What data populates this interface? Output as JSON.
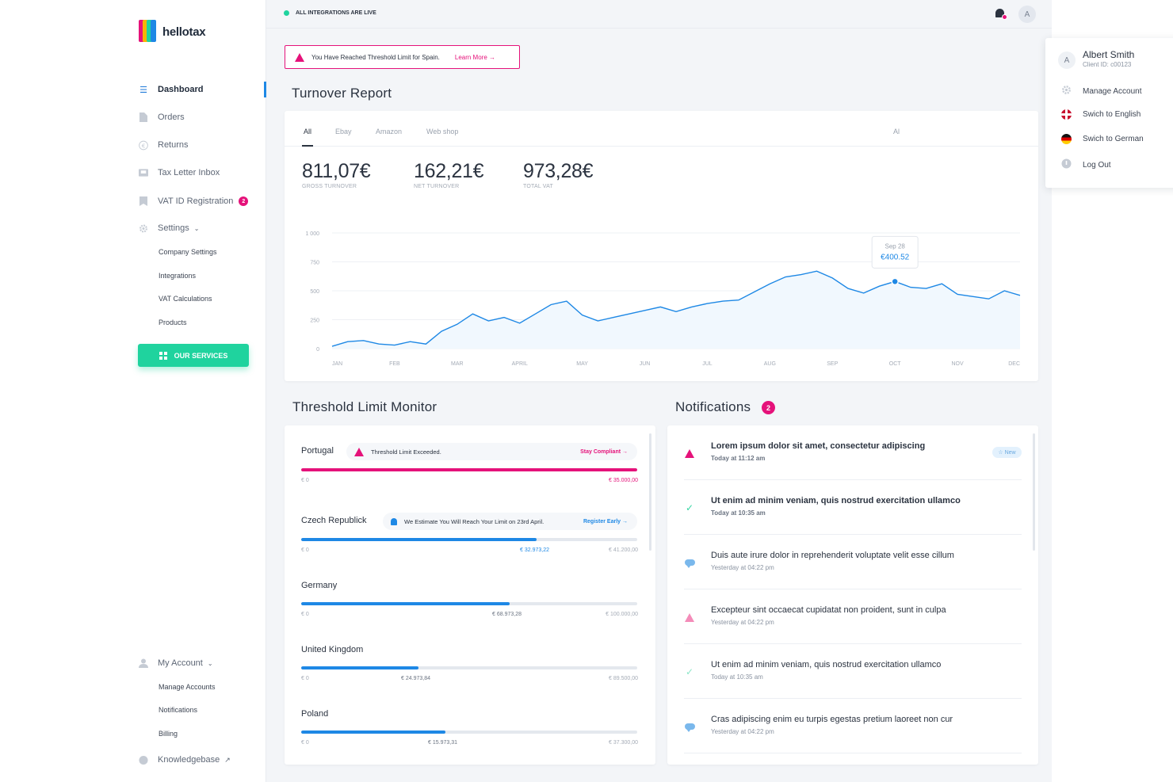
{
  "brand": {
    "name": "hellotax",
    "logo_colors": [
      "#e5127a",
      "#f7b500",
      "#1fd39e",
      "#1e88e5"
    ]
  },
  "sidebar": {
    "items": [
      {
        "label": "Dashboard",
        "icon": "menu-icon"
      },
      {
        "label": "Orders",
        "icon": "document-icon"
      },
      {
        "label": "Returns",
        "icon": "euro-icon"
      },
      {
        "label": "Tax Letter Inbox",
        "icon": "inbox-icon"
      },
      {
        "label": "VAT ID Registration",
        "icon": "bookmark-icon",
        "badge": "2"
      },
      {
        "label": "Settings",
        "icon": "gear-icon"
      }
    ],
    "settings_sub": [
      "Company Settings",
      "Integrations",
      "VAT Calculations",
      "Products"
    ],
    "services_button": "OUR SERVICES",
    "account": {
      "label": "My Account",
      "icon": "user-icon"
    },
    "account_sub": [
      "Manage Accounts",
      "Notifications",
      "Billing"
    ],
    "knowledgebase": "Knowledgebase"
  },
  "topbar": {
    "status": "ALL INTEGRATIONS ARE LIVE",
    "avatar_initial": "A"
  },
  "alert": {
    "text": "You Have Reached Threshold Limit for Spain.",
    "link": "Learn More →"
  },
  "turnover": {
    "title": "Turnover Report",
    "tabs": [
      "All",
      "Ebay",
      "Amazon",
      "Web shop"
    ],
    "tab_right": "Al",
    "stats": [
      {
        "value": "811,07€",
        "label": "GROSS TURNOVER"
      },
      {
        "value": "162,21€",
        "label": "NET TURNOVER"
      },
      {
        "value": "973,28€",
        "label": "TOTAL VAT"
      }
    ],
    "tooltip": {
      "date": "Sep 28",
      "value": "€400.52"
    }
  },
  "chart_data": {
    "type": "area",
    "title": "",
    "xlabel": "",
    "ylabel": "",
    "ylim": [
      0,
      1000
    ],
    "yticks": [
      "0",
      "250",
      "500",
      "750",
      "1 000"
    ],
    "categories": [
      "JAN",
      "FEB",
      "MAR",
      "APRIL",
      "MAY",
      "JUN",
      "JUL",
      "AUG",
      "SEP",
      "OCT",
      "NOV",
      "DEC"
    ],
    "x": [
      0,
      0.25,
      0.5,
      0.75,
      1,
      1.25,
      1.5,
      1.75,
      2,
      2.25,
      2.5,
      2.75,
      3,
      3.25,
      3.5,
      3.75,
      4,
      4.25,
      4.5,
      4.75,
      5,
      5.25,
      5.5,
      5.75,
      6,
      6.25,
      6.5,
      6.75,
      7,
      7.25,
      7.5,
      7.75,
      8,
      8.25,
      8.5,
      8.75,
      9,
      9.25,
      9.5,
      9.75,
      10,
      10.25,
      10.5,
      10.75,
      11
    ],
    "values": [
      20,
      60,
      70,
      40,
      30,
      60,
      40,
      150,
      210,
      300,
      240,
      270,
      220,
      300,
      380,
      410,
      290,
      240,
      270,
      300,
      330,
      360,
      320,
      360,
      390,
      410,
      420,
      490,
      560,
      620,
      640,
      670,
      610,
      520,
      480,
      540,
      580,
      530,
      520,
      560,
      470,
      450,
      430,
      500,
      460
    ],
    "series_color": "#1e88e5",
    "fill_color": "#f1f8fe",
    "grid": true
  },
  "threshold": {
    "title": "Threshold Limit Monitor",
    "rows": [
      {
        "country": "Portugal",
        "pill": "Threshold Limit Exceeded.",
        "action": "Stay Compliant →",
        "progress": 1.0,
        "min": "€ 0",
        "current": "",
        "max": "€ 35.000,00",
        "color": "#e5127a",
        "pill_type": "warning"
      },
      {
        "country": "Czech Republick",
        "pill": "We Estimate You Will Reach Your Limit on 23rd April.",
        "action": "Register Early →",
        "progress": 0.7,
        "min": "€ 0",
        "current": "€ 32.973,22",
        "max": "€ 41.200,00",
        "color": "#1e88e5",
        "pill_type": "info"
      },
      {
        "country": "Germany",
        "pill": "",
        "action": "",
        "progress": 0.62,
        "min": "€ 0",
        "current": "€ 68.973,28",
        "max": "€ 100.000,00",
        "color": "#1e88e5",
        "pill_type": ""
      },
      {
        "country": "United Kingdom",
        "pill": "",
        "action": "",
        "progress": 0.35,
        "min": "€ 0",
        "current": "€ 24.973,84",
        "max": "€ 89.500,00",
        "color": "#1e88e5",
        "pill_type": ""
      },
      {
        "country": "Poland",
        "pill": "",
        "action": "",
        "progress": 0.43,
        "min": "€ 0",
        "current": "€ 15.973,31",
        "max": "€ 37.300,00",
        "color": "#1e88e5",
        "pill_type": ""
      }
    ]
  },
  "notifications": {
    "title": "Notifications",
    "count": "2",
    "items": [
      {
        "title": "Lorem ipsum dolor sit amet, consectetur adipiscing",
        "time": "Today at 11:12 am",
        "icon": "warning-icon",
        "unread": true,
        "tag": "☆ New"
      },
      {
        "title": "Ut enim ad minim veniam, quis nostrud exercitation ullamco",
        "time": "Today at 10:35 am",
        "icon": "check-icon",
        "unread": true,
        "tag": ""
      },
      {
        "title": "Duis aute irure dolor in reprehenderit voluptate velit esse cillum",
        "time": "Yesterday at 04:22 pm",
        "icon": "chat-icon",
        "unread": false,
        "tag": ""
      },
      {
        "title": "Excepteur sint occaecat cupidatat non proident, sunt in culpa",
        "time": "Yesterday at 04:22 pm",
        "icon": "warning-icon",
        "unread": false,
        "tag": ""
      },
      {
        "title": "Ut enim ad minim veniam, quis nostrud exercitation ullamco",
        "time": "Today at 10:35 am",
        "icon": "check-icon",
        "unread": false,
        "tag": ""
      },
      {
        "title": "Cras adipiscing enim eu turpis egestas pretium laoreet non cur",
        "time": "Yesterday at 04:22 pm",
        "icon": "chat-icon",
        "unread": false,
        "tag": ""
      }
    ]
  },
  "dropdown": {
    "name": "Albert Smith",
    "client_id": "Client ID: c00123",
    "avatar_initial": "A",
    "items": [
      {
        "label": "Manage Account",
        "icon": "gear-icon"
      },
      {
        "label": "Swich to English",
        "icon": "uk-flag-icon"
      },
      {
        "label": "Swich to German",
        "icon": "germany-flag-icon"
      },
      {
        "label": "Log Out",
        "icon": "logout-icon"
      }
    ]
  }
}
